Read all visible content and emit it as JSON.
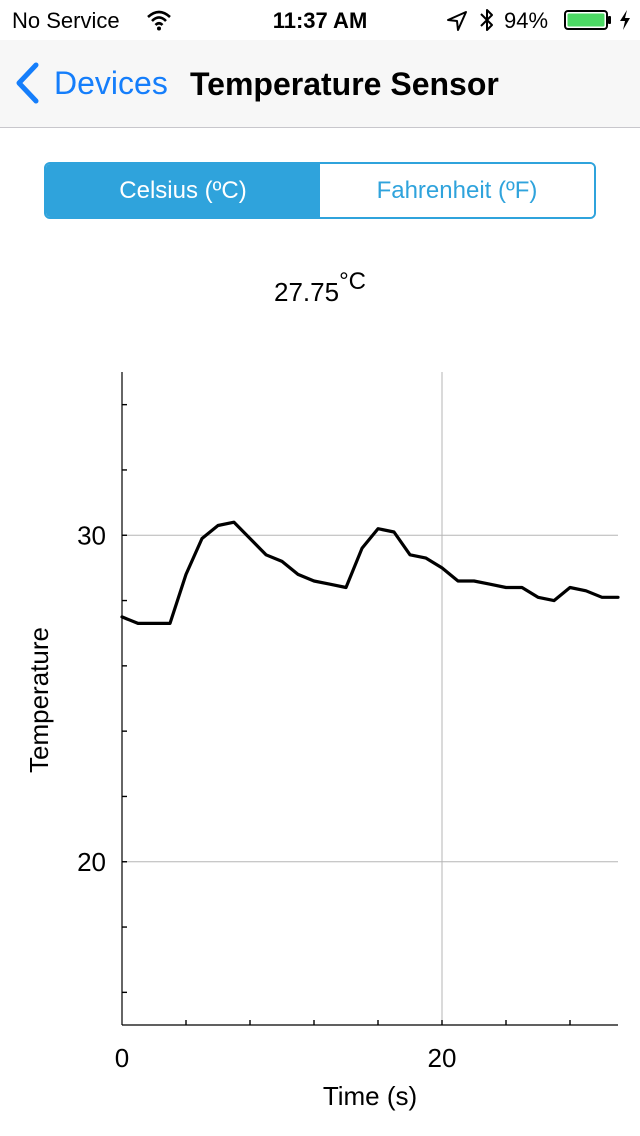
{
  "status_bar": {
    "carrier": "No Service",
    "time": "11:37 AM",
    "battery_percent": "94%",
    "icons": [
      "wifi-icon",
      "location-icon",
      "bluetooth-icon",
      "battery-icon",
      "charging-bolt-icon"
    ]
  },
  "nav": {
    "back_label": "Devices",
    "title": "Temperature Sensor"
  },
  "unit_toggle": {
    "options": [
      "Celsius (ºC)",
      "Fahrenheit (ºF)"
    ],
    "selected": 0
  },
  "reading": {
    "value": "27.75",
    "unit": "°C"
  },
  "chart_data": {
    "type": "line",
    "xlabel": "Time (s)",
    "ylabel": "Temperature",
    "xlim": [
      0,
      31
    ],
    "ylim": [
      15,
      35
    ],
    "x_tick_labels": [
      "0",
      "20"
    ],
    "y_tick_labels": [
      "20",
      "30"
    ],
    "grid": true,
    "series": [
      {
        "x": [
          0,
          1,
          2,
          3,
          4,
          5,
          6,
          7,
          8,
          9,
          10,
          11,
          12,
          13,
          14,
          15,
          16,
          17,
          18,
          19,
          20,
          21,
          22,
          23,
          24,
          25,
          26,
          27,
          28,
          29,
          30,
          31
        ],
        "values": [
          27.5,
          27.3,
          27.3,
          27.3,
          28.8,
          29.9,
          30.3,
          30.4,
          29.9,
          29.4,
          29.2,
          28.8,
          28.6,
          28.5,
          28.4,
          29.6,
          30.2,
          30.1,
          29.4,
          29.3,
          29.0,
          28.6,
          28.6,
          28.5,
          28.4,
          28.4,
          28.1,
          28.0,
          28.4,
          28.3,
          28.1,
          28.1
        ]
      }
    ]
  }
}
